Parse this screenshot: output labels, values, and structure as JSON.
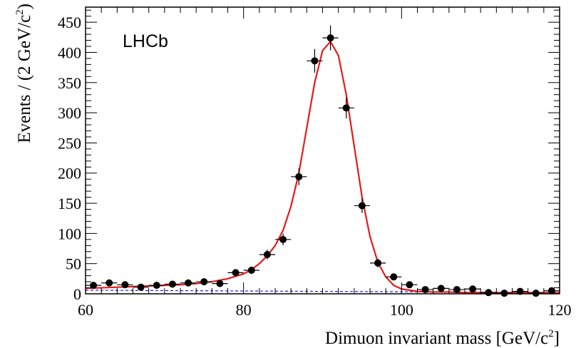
{
  "chart_data": {
    "type": "scatter",
    "experiment_label": "LHCb",
    "xlabel": "Dimuon invariant mass [GeV/c",
    "xlabel_sup": "2",
    "xlabel_end": "]",
    "ylabel": "Events / (2 GeV/c",
    "ylabel_sup": "2",
    "ylabel_end": ")",
    "xlim": [
      60,
      120
    ],
    "ylim": [
      0,
      475
    ],
    "x_ticks": [
      60,
      80,
      100,
      120
    ],
    "y_ticks": [
      0,
      50,
      100,
      150,
      200,
      250,
      300,
      350,
      400,
      450
    ],
    "bin_width": 2,
    "series": [
      {
        "kind": "data-points",
        "color": "#000000",
        "x": [
          61,
          63,
          65,
          67,
          69,
          71,
          73,
          75,
          77,
          79,
          81,
          83,
          85,
          87,
          89,
          91,
          93,
          95,
          97,
          99,
          101,
          103,
          105,
          107,
          109,
          111,
          113,
          115,
          117,
          119
        ],
        "y": [
          14,
          18,
          15,
          11,
          14,
          16,
          18,
          20,
          17,
          35,
          39,
          65,
          90,
          194,
          386,
          424,
          308,
          146,
          51,
          28,
          15,
          7,
          9,
          7,
          8,
          2,
          1,
          4,
          1,
          5
        ],
        "yerr": [
          3.7,
          4.2,
          3.9,
          3.3,
          3.7,
          4.0,
          4.2,
          4.5,
          4.1,
          5.9,
          6.2,
          8.1,
          9.5,
          13.9,
          19.6,
          20.6,
          17.5,
          12.1,
          7.1,
          5.3,
          3.9,
          2.6,
          3.0,
          2.6,
          2.8,
          1.4,
          1.0,
          2.0,
          1.0,
          2.2
        ]
      },
      {
        "kind": "fit-total",
        "color": "#e41a1c",
        "x": [
          60,
          62,
          64,
          66,
          68,
          70,
          72,
          74,
          76,
          78,
          80,
          81,
          82,
          83,
          84,
          85,
          86,
          87,
          88,
          89,
          90,
          91,
          92,
          93,
          94,
          95,
          96,
          97,
          98,
          99,
          100,
          102,
          104,
          106,
          108,
          110,
          112,
          114,
          116,
          118,
          120
        ],
        "y": [
          9,
          10,
          11,
          12,
          13,
          14,
          15,
          17,
          20,
          25,
          33,
          40,
          50,
          63,
          80,
          105,
          145,
          200,
          275,
          350,
          403,
          418,
          395,
          330,
          245,
          160,
          95,
          52,
          28,
          14,
          8,
          4,
          3,
          3,
          2,
          2,
          2,
          2,
          2,
          2,
          2
        ]
      },
      {
        "kind": "fit-background",
        "color": "#1a1aff",
        "x": [
          60,
          120
        ],
        "y": [
          6,
          2
        ]
      }
    ]
  }
}
